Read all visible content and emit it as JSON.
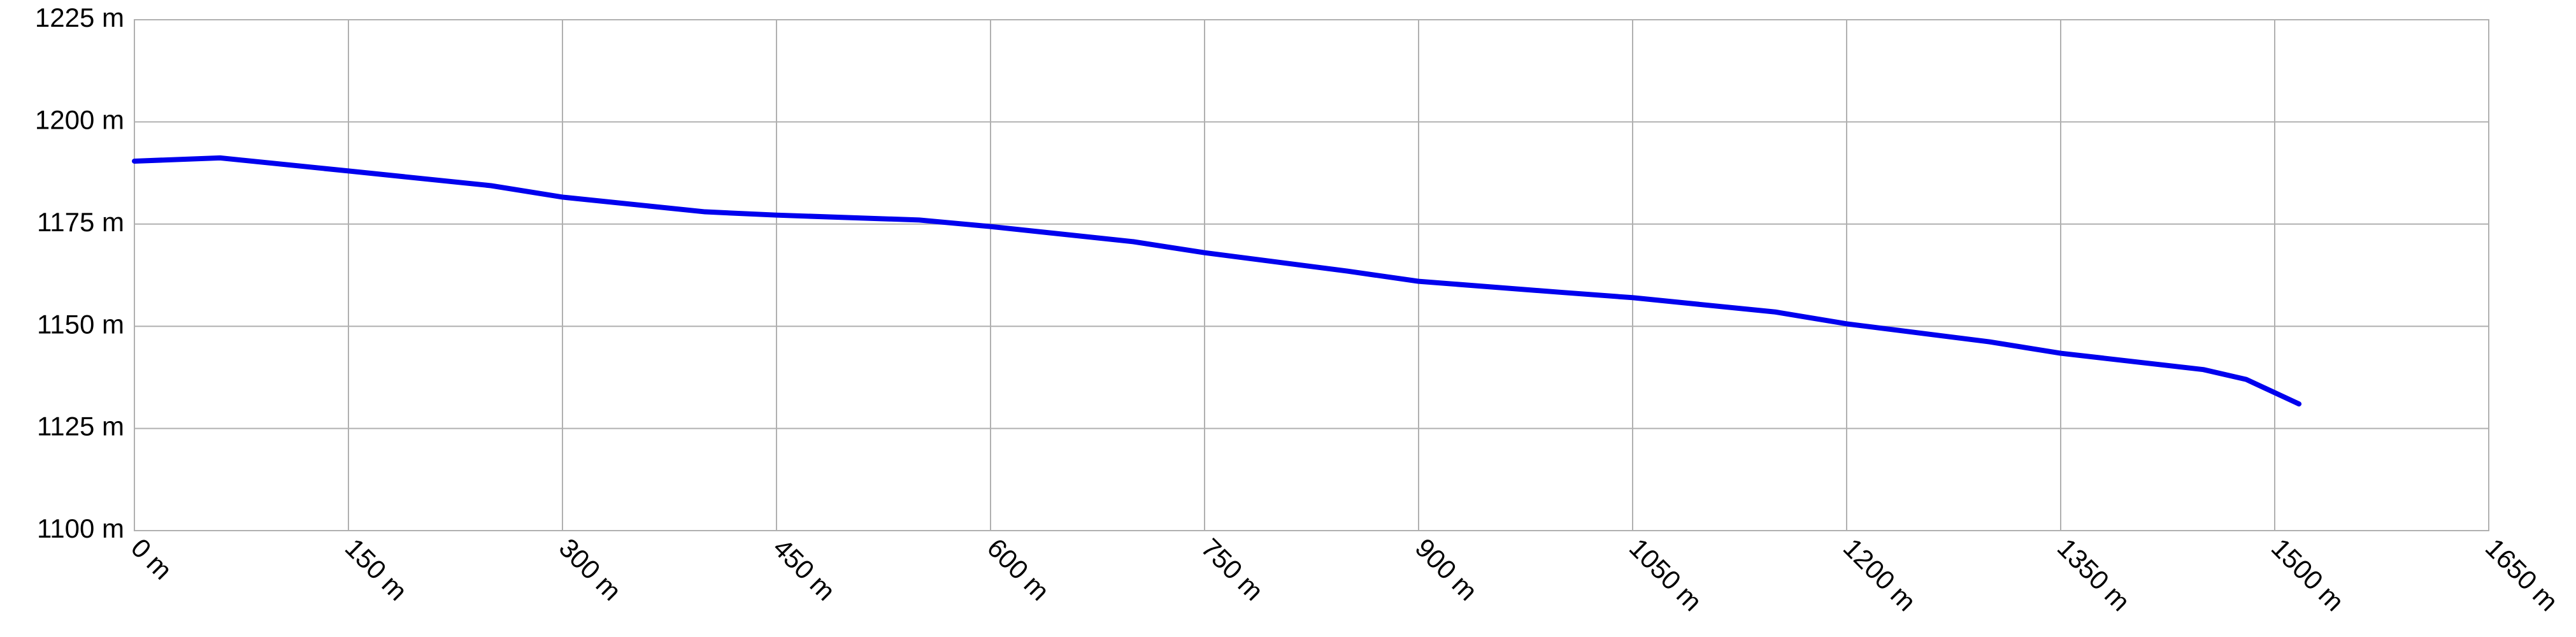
{
  "chart_data": {
    "type": "line",
    "x": [
      0,
      60,
      150,
      250,
      300,
      400,
      450,
      550,
      600,
      700,
      750,
      850,
      900,
      1000,
      1050,
      1150,
      1200,
      1300,
      1350,
      1450,
      1480,
      1517
    ],
    "series": [
      {
        "color": "#0000ee",
        "values": [
          1190.4,
          1191.2,
          1188,
          1184.4,
          1181.6,
          1178,
          1177.2,
          1176,
          1174.4,
          1170.7,
          1168,
          1163.5,
          1161,
          1158.3,
          1157,
          1153.5,
          1150.6,
          1146.2,
          1143.4,
          1139.4,
          1137,
          1131
        ]
      }
    ],
    "xlim": [
      0,
      1650
    ],
    "xticks": [
      {
        "value": 0,
        "label": "0 m"
      },
      {
        "value": 150,
        "label": "150 m"
      },
      {
        "value": 300,
        "label": "300 m"
      },
      {
        "value": 450,
        "label": "450 m"
      },
      {
        "value": 600,
        "label": "600 m"
      },
      {
        "value": 750,
        "label": "750 m"
      },
      {
        "value": 900,
        "label": "900 m"
      },
      {
        "value": 1050,
        "label": "1050 m"
      },
      {
        "value": 1200,
        "label": "1200 m"
      },
      {
        "value": 1350,
        "label": "1350 m"
      },
      {
        "value": 1500,
        "label": "1500 m"
      },
      {
        "value": 1650,
        "label": "1650 m"
      }
    ],
    "ylim": [
      1100,
      1225
    ],
    "yticks": [
      {
        "value": 1100,
        "label": "1100 m"
      },
      {
        "value": 1125,
        "label": "1125 m"
      },
      {
        "value": 1150,
        "label": "1150 m"
      },
      {
        "value": 1175,
        "label": "1175 m"
      },
      {
        "value": 1200,
        "label": "1200 m"
      },
      {
        "value": 1225,
        "label": "1225 m"
      }
    ],
    "grid": true
  }
}
